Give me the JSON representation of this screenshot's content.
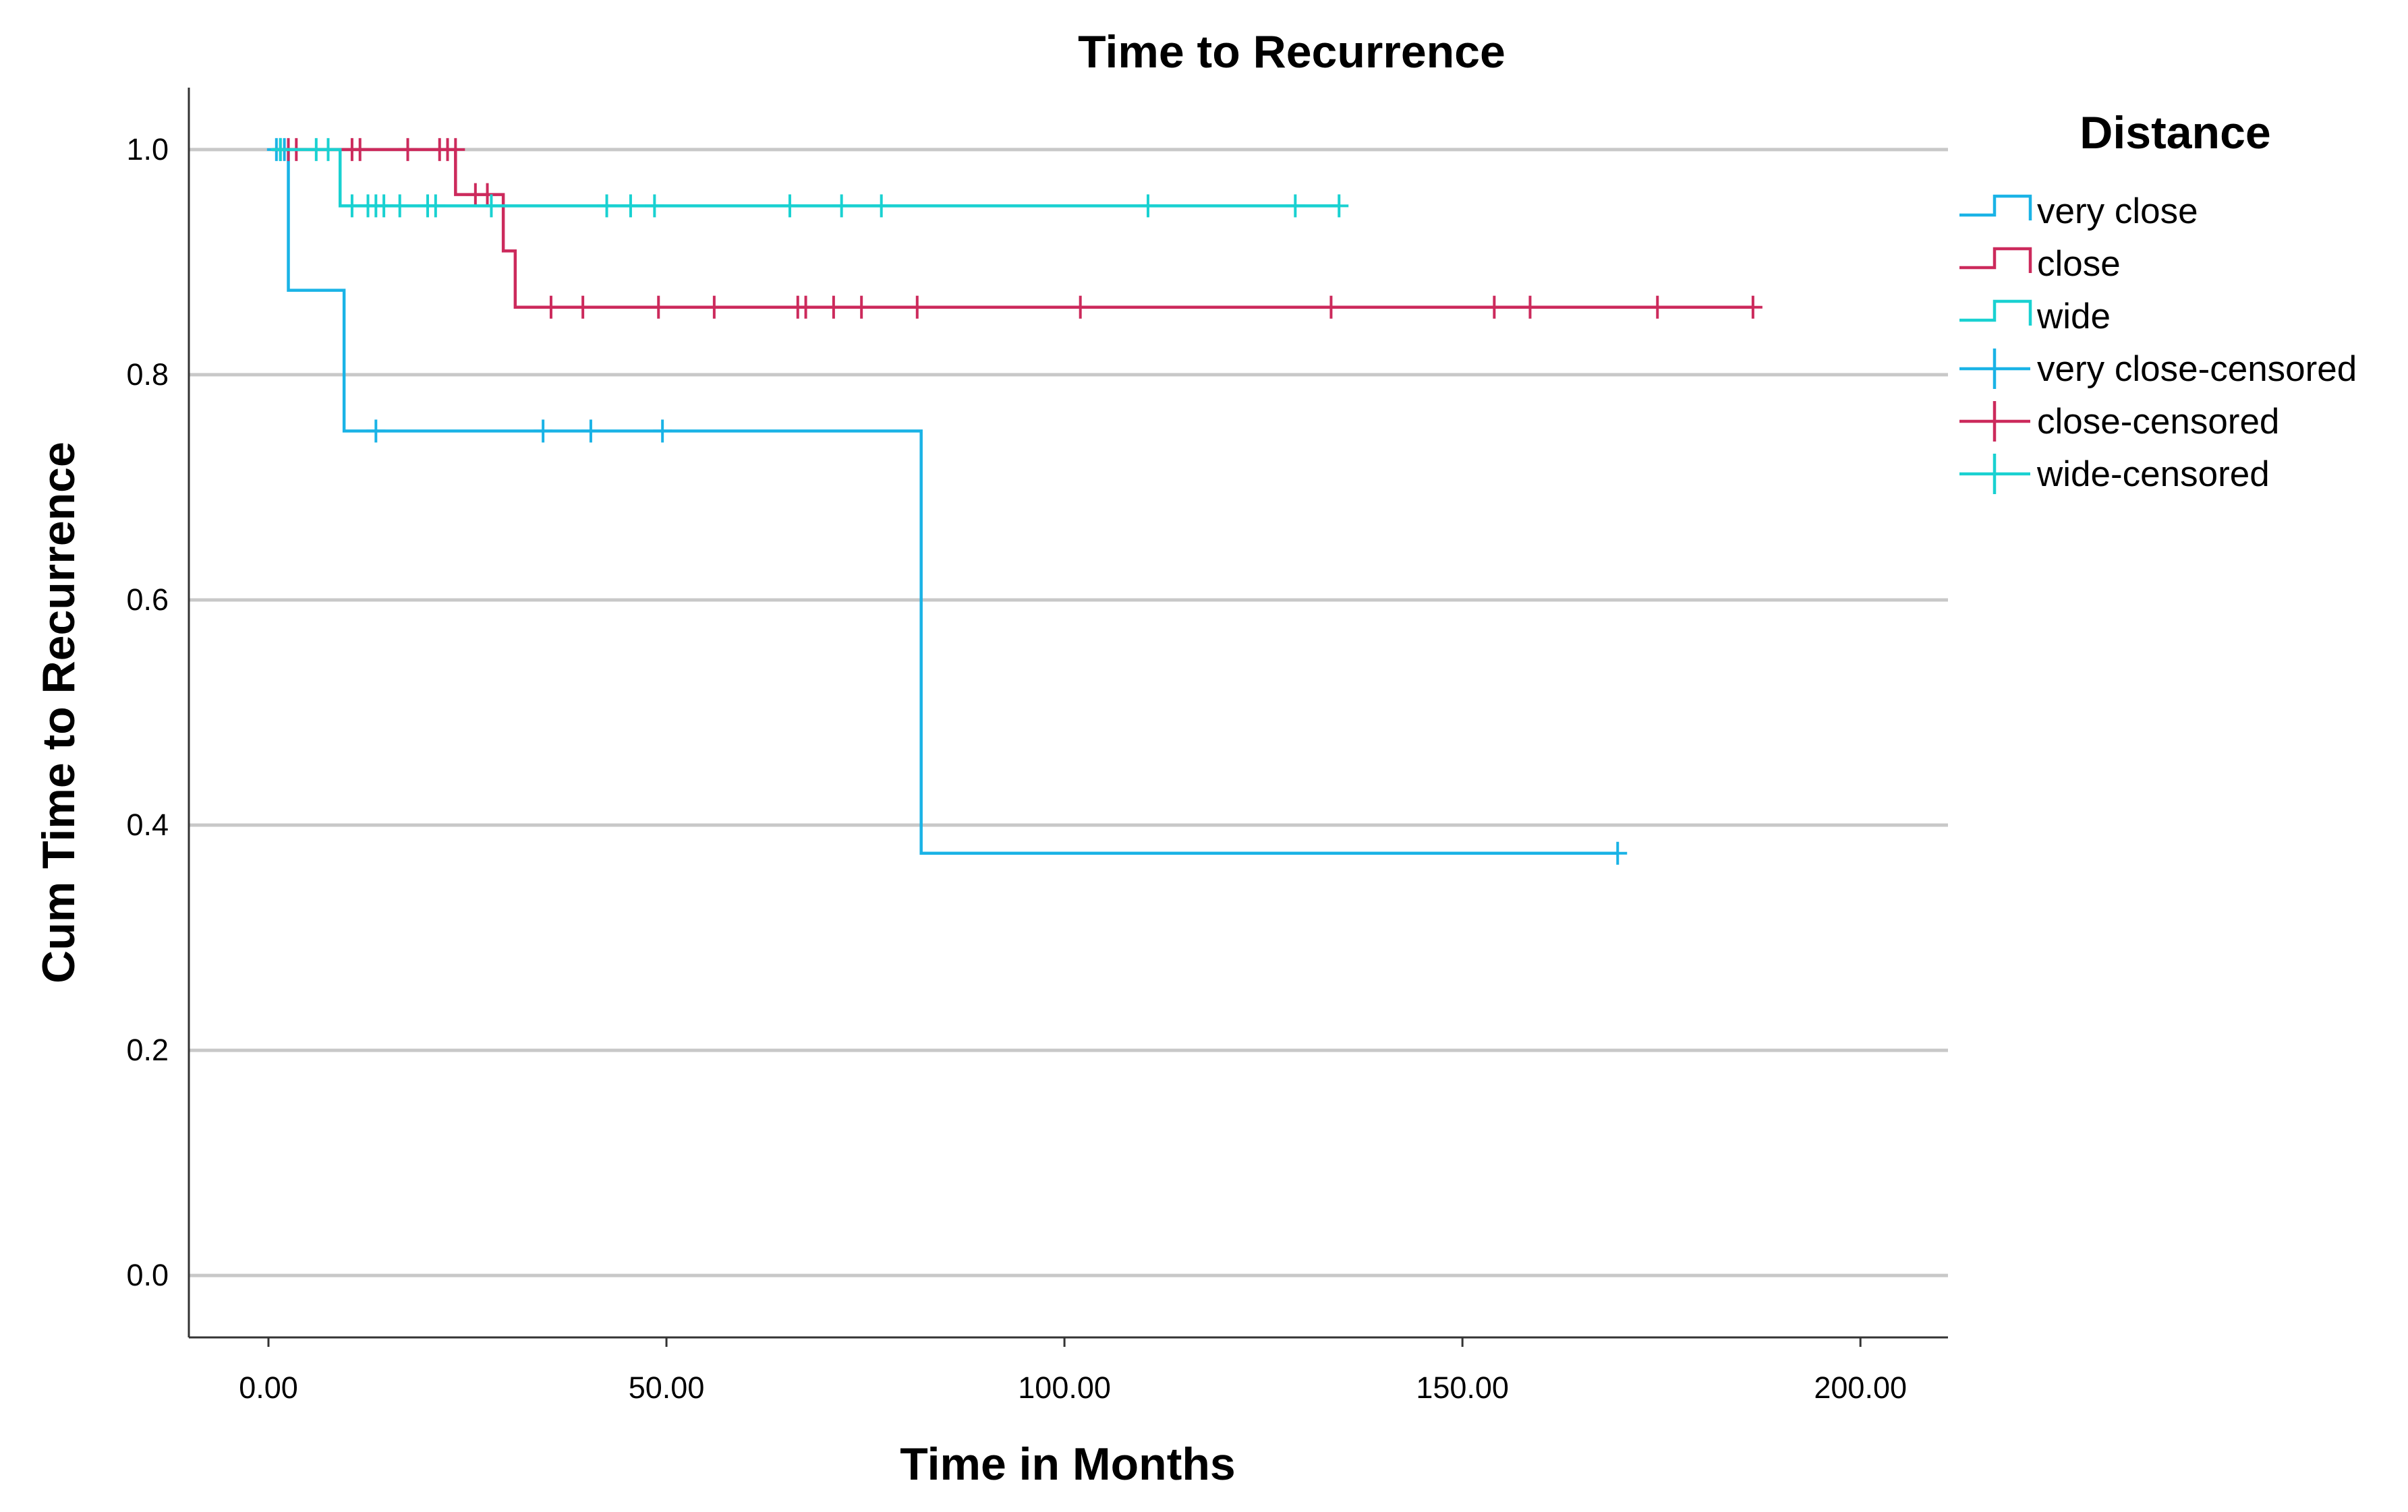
{
  "chart_data": {
    "type": "line",
    "subtype": "kaplan-meier step",
    "title": "Time to Recurrence",
    "xlabel": "Time in Months",
    "ylabel": "Cum Time to Recurrence",
    "xlim": [
      -10,
      211
    ],
    "ylim": [
      -0.055,
      1.055
    ],
    "x_ticks": [
      0,
      50,
      100,
      150,
      200
    ],
    "x_tick_labels": [
      "0.00",
      "50.00",
      "100.00",
      "150.00",
      "200.00"
    ],
    "y_ticks": [
      0.0,
      0.2,
      0.4,
      0.6,
      0.8,
      1.0
    ],
    "y_tick_labels": [
      "0.0",
      "0.2",
      "0.4",
      "0.6",
      "0.8",
      "1.0"
    ],
    "grid": "horizontal",
    "legend_title": "Distance",
    "legend_position": "right",
    "series": [
      {
        "name": "very close",
        "color": "#1ab3e6",
        "steps": [
          [
            0.5,
            1.0
          ],
          [
            2.5,
            0.875
          ],
          [
            9.5,
            0.75
          ],
          [
            82,
            0.375
          ],
          [
            169.5,
            0.375
          ]
        ],
        "censored": [
          [
            1,
            1.0
          ],
          [
            1.5,
            1.0
          ],
          [
            2,
            1.0
          ],
          [
            13.5,
            0.75
          ],
          [
            34.5,
            0.75
          ],
          [
            40.5,
            0.75
          ],
          [
            49.5,
            0.75
          ],
          [
            169.5,
            0.375
          ]
        ]
      },
      {
        "name": "close",
        "color": "#cc2a5c",
        "steps": [
          [
            0.5,
            1.0
          ],
          [
            23.5,
            0.96
          ],
          [
            29.5,
            0.91
          ],
          [
            31,
            0.86
          ],
          [
            186.5,
            0.86
          ]
        ],
        "censored": [
          [
            2.5,
            1.0
          ],
          [
            3.5,
            1.0
          ],
          [
            10.5,
            1.0
          ],
          [
            11.5,
            1.0
          ],
          [
            17.5,
            1.0
          ],
          [
            21.5,
            1.0
          ],
          [
            22.5,
            1.0
          ],
          [
            23.5,
            1.0
          ],
          [
            26,
            0.96
          ],
          [
            27.5,
            0.96
          ],
          [
            35.5,
            0.86
          ],
          [
            39.5,
            0.86
          ],
          [
            49,
            0.86
          ],
          [
            56,
            0.86
          ],
          [
            66.5,
            0.86
          ],
          [
            67.5,
            0.86
          ],
          [
            71,
            0.86
          ],
          [
            74.5,
            0.86
          ],
          [
            81.5,
            0.86
          ],
          [
            102,
            0.86
          ],
          [
            133.5,
            0.86
          ],
          [
            154,
            0.86
          ],
          [
            158.5,
            0.86
          ],
          [
            174.5,
            0.86
          ],
          [
            186.5,
            0.86
          ]
        ],
        "censored_note": ""
      },
      {
        "name": "wide",
        "color": "#19d1d1",
        "steps": [
          [
            0.5,
            1.0
          ],
          [
            9,
            0.95
          ],
          [
            134.5,
            0.95
          ]
        ],
        "censored": [
          [
            1.5,
            1.0
          ],
          [
            6,
            1.0
          ],
          [
            7.5,
            1.0
          ],
          [
            10.5,
            0.95
          ],
          [
            12.5,
            0.95
          ],
          [
            13.5,
            0.95
          ],
          [
            14.5,
            0.95
          ],
          [
            16.5,
            0.95
          ],
          [
            20,
            0.95
          ],
          [
            21,
            0.95
          ],
          [
            28,
            0.95
          ],
          [
            42.5,
            0.95
          ],
          [
            45.5,
            0.95
          ],
          [
            48.5,
            0.95
          ],
          [
            65.5,
            0.95
          ],
          [
            72,
            0.95
          ],
          [
            77,
            0.95
          ],
          [
            110.5,
            0.95
          ],
          [
            129,
            0.95
          ],
          [
            134.5,
            0.95
          ]
        ]
      }
    ],
    "legend_entries": [
      "very close",
      "close",
      "wide",
      "very close-censored",
      "close-censored",
      "wide-censored"
    ]
  }
}
